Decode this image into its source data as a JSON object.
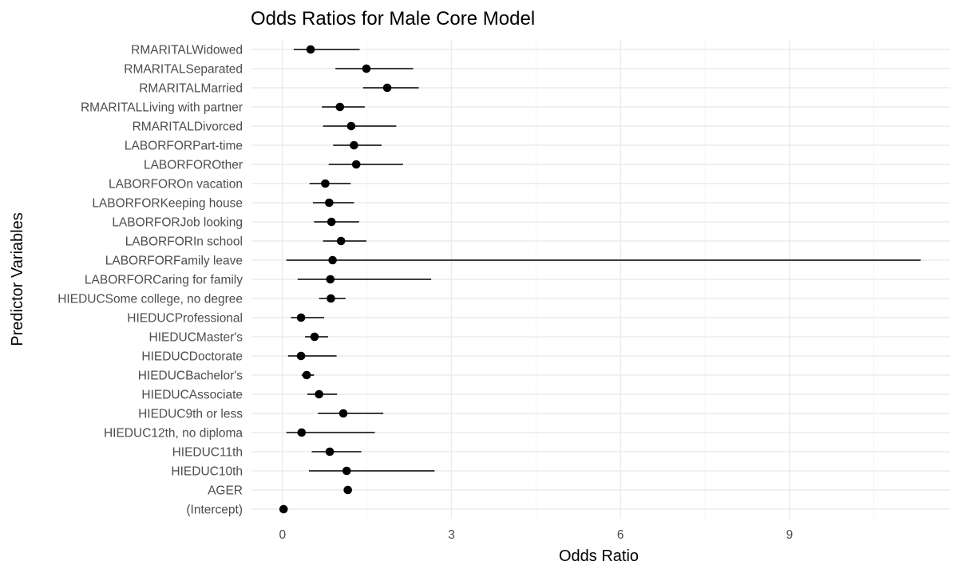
{
  "chart_data": {
    "type": "scatter",
    "subtype": "forest-plot (point estimate with confidence interval)",
    "title": "Odds Ratios for Male Core Model",
    "xlabel": "Odds Ratio",
    "ylabel": "Predictor Variables",
    "xlim": [
      -0.55,
      11.85
    ],
    "x_ticks": [
      0,
      3,
      6,
      9
    ],
    "x_tick_labels": [
      "0",
      "3",
      "6",
      "9"
    ],
    "grid": true,
    "legend": "none",
    "point_color": "#000000",
    "categories": [
      "(Intercept)",
      "AGER",
      "HIEDUC10th",
      "HIEDUC11th",
      "HIEDUC12th, no diploma",
      "HIEDUC9th or less",
      "HIEDUCAssociate",
      "HIEDUCBachelor's",
      "HIEDUCDoctorate",
      "HIEDUCMaster's",
      "HIEDUCProfessional",
      "HIEDUCSome college, no degree",
      "LABORFORCaring for family",
      "LABORFORFamily leave",
      "LABORFORIn school",
      "LABORFORJob looking",
      "LABORFORKeeping house",
      "LABORFOROn vacation",
      "LABORFOROther",
      "LABORFORPart-time",
      "RMARITALDivorced",
      "RMARITALLiving with partner",
      "RMARITALMarried",
      "RMARITALSeparated",
      "RMARITALWidowed"
    ],
    "estimate": [
      0.02,
      1.16,
      1.14,
      0.84,
      0.34,
      1.08,
      0.65,
      0.43,
      0.33,
      0.57,
      0.33,
      0.86,
      0.85,
      0.89,
      1.04,
      0.87,
      0.83,
      0.76,
      1.31,
      1.27,
      1.22,
      1.02,
      1.86,
      1.49,
      0.5
    ],
    "ci_lower": [
      0.01,
      1.1,
      0.47,
      0.52,
      0.07,
      0.63,
      0.44,
      0.34,
      0.1,
      0.4,
      0.15,
      0.65,
      0.27,
      0.07,
      0.72,
      0.56,
      0.54,
      0.48,
      0.82,
      0.9,
      0.72,
      0.7,
      1.43,
      0.94,
      0.2
    ],
    "ci_upper": [
      0.03,
      1.21,
      2.7,
      1.4,
      1.64,
      1.79,
      0.97,
      0.56,
      0.96,
      0.81,
      0.74,
      1.12,
      2.64,
      11.33,
      1.49,
      1.36,
      1.27,
      1.21,
      2.14,
      1.76,
      2.02,
      1.46,
      2.42,
      2.32,
      1.37
    ]
  }
}
